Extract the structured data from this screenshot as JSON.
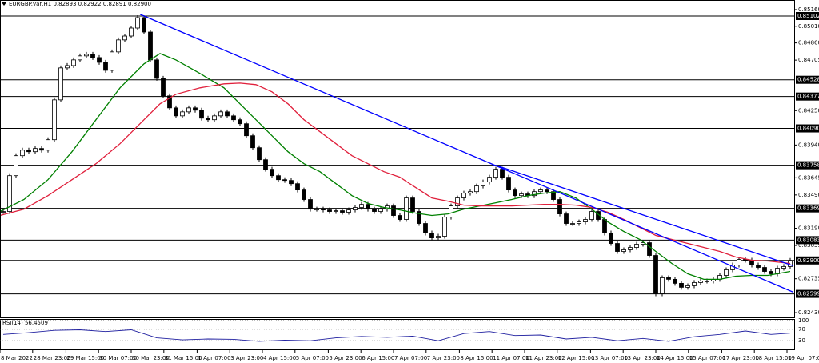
{
  "chart_data": {
    "type": "candlestick",
    "title": "EURGBP.var,H1  0.82893 0.82922 0.82891 0.82900",
    "xlim": [
      -0.5,
      123.5
    ],
    "ylim": [
      0.8238,
      0.85246
    ],
    "values": [
      0.83341,
      0.83664,
      0.83844,
      0.83894,
      0.8388,
      0.83909,
      0.83894,
      0.83988,
      0.84347,
      0.84635,
      0.84656,
      0.84707,
      0.84743,
      0.84757,
      0.84728,
      0.84685,
      0.84613,
      0.84779,
      0.84887,
      0.84922,
      0.84994,
      0.85088,
      0.84958,
      0.84707,
      0.84541,
      0.84383,
      0.84275,
      0.84203,
      0.84239,
      0.84275,
      0.84254,
      0.84182,
      0.84168,
      0.84203,
      0.84239,
      0.84203,
      0.84168,
      0.84132,
      0.84024,
      0.83916,
      0.83808,
      0.83722,
      0.83664,
      0.83628,
      0.83621,
      0.83592,
      0.83535,
      0.83449,
      0.83362,
      0.83362,
      0.83355,
      0.83341,
      0.83348,
      0.83334,
      0.83355,
      0.83377,
      0.83405,
      0.83362,
      0.83341,
      0.83362,
      0.83391,
      0.83305,
      0.83269,
      0.83463,
      0.83341,
      0.83233,
      0.83147,
      0.83103,
      0.83118,
      0.8329,
      0.83391,
      0.83463,
      0.83506,
      0.8352,
      0.83571,
      0.83607,
      0.8365,
      0.83722,
      0.8365,
      0.83535,
      0.83484,
      0.83499,
      0.83484,
      0.8352,
      0.83535,
      0.8352,
      0.83449,
      0.83319,
      0.83233,
      0.83233,
      0.83247,
      0.83269,
      0.83341,
      0.83269,
      0.83147,
      0.83053,
      0.82981,
      0.82996,
      0.83017,
      0.83046,
      0.8306,
      0.82945,
      0.826,
      0.82744,
      0.8273,
      0.82694,
      0.82658,
      0.82672,
      0.82701,
      0.82715,
      0.82715,
      0.8273,
      0.82765,
      0.82816,
      0.82859,
      0.82909,
      0.82902,
      0.82859,
      0.82837,
      0.82801,
      0.8278,
      0.8283,
      0.82845,
      0.829
    ],
    "bull_color": "#ffffff",
    "bear_color": "#000000",
    "yticks": [
      {
        "value": 0.8516,
        "label": "0.85160"
      },
      {
        "value": 0.8501,
        "label": "0.85010"
      },
      {
        "value": 0.8486,
        "label": "0.84860"
      },
      {
        "value": 0.84705,
        "label": "0.84705"
      },
      {
        "value": 0.8425,
        "label": "0.84250"
      },
      {
        "value": 0.8394,
        "label": "0.83940"
      },
      {
        "value": 0.83645,
        "label": "0.83645"
      },
      {
        "value": 0.8349,
        "label": "0.83490"
      },
      {
        "value": 0.8319,
        "label": "0.83190"
      },
      {
        "value": 0.83035,
        "label": "0.83035"
      },
      {
        "value": 0.82735,
        "label": "0.82735"
      },
      {
        "value": 0.8243,
        "label": "0.82430"
      }
    ],
    "levels": [
      {
        "value": 0.85102,
        "label": "0.85102"
      },
      {
        "value": 0.84528,
        "label": "0.84528"
      },
      {
        "value": 0.84377,
        "label": "0.84377"
      },
      {
        "value": 0.8409,
        "label": "0.84090"
      },
      {
        "value": 0.83758,
        "label": "0.83758"
      },
      {
        "value": 0.83369,
        "label": "0.83369"
      },
      {
        "value": 0.83083,
        "label": "0.83083"
      },
      {
        "value": 0.829,
        "label": "0.82900"
      },
      {
        "value": 0.82599,
        "label": "0.82599"
      }
    ],
    "level_color": "#000000",
    "xticks": [
      {
        "value": -0.5,
        "label": "8 Mar 2022"
      },
      {
        "value": 4.6,
        "label": "28 Mar 23:00"
      },
      {
        "value": 9.8,
        "label": "29 Mar 15:00"
      },
      {
        "value": 14.9,
        "label": "30 Mar 07:00"
      },
      {
        "value": 20,
        "label": "30 Mar 23:00"
      },
      {
        "value": 25.1,
        "label": "31 Mar 15:00"
      },
      {
        "value": 30.3,
        "label": "1 Apr 07:00"
      },
      {
        "value": 35.4,
        "label": "3 Apr 23:00"
      },
      {
        "value": 40.5,
        "label": "4 Apr 15:00"
      },
      {
        "value": 45.6,
        "label": "5 Apr 07:00"
      },
      {
        "value": 50.8,
        "label": "5 Apr 23:00"
      },
      {
        "value": 55.9,
        "label": "6 Apr 15:00"
      },
      {
        "value": 61,
        "label": "7 Apr 07:00"
      },
      {
        "value": 66.1,
        "label": "7 Apr 23:00"
      },
      {
        "value": 71.3,
        "label": "8 Apr 15:00"
      },
      {
        "value": 76.4,
        "label": "11 Apr 07:00"
      },
      {
        "value": 81.5,
        "label": "11 Apr 23:00"
      },
      {
        "value": 86.6,
        "label": "12 Apr 15:00"
      },
      {
        "value": 91.8,
        "label": "13 Apr 07:00"
      },
      {
        "value": 96.9,
        "label": "13 Apr 23:00"
      },
      {
        "value": 102,
        "label": "14 Apr 15:00"
      },
      {
        "value": 107.1,
        "label": "15 Apr 07:00"
      },
      {
        "value": 112.3,
        "label": "17 Apr 23:00"
      },
      {
        "value": 117.4,
        "label": "18 Apr 15:00"
      },
      {
        "value": 122.5,
        "label": "19 Apr 07:00"
      }
    ],
    "overlays": [
      {
        "color": "#008000",
        "x": [
          -0.5,
          3.25,
          7,
          10.75,
          14.5,
          18.25,
          22,
          24.5,
          27,
          30.75,
          34.5,
          37,
          39.5,
          42,
          44.5,
          47,
          49.5,
          52,
          54.5,
          57,
          59.5,
          62,
          64.5,
          67,
          69.5,
          72,
          74.5,
          77,
          79.5,
          82,
          84.5,
          87,
          89.5,
          92,
          94.5,
          97,
          99.5,
          102,
          104.5,
          107,
          109.5,
          112,
          114.5,
          117,
          119.5,
          123
        ],
        "values": [
          0.83341,
          0.83449,
          0.83628,
          0.8388,
          0.84168,
          0.84455,
          0.84671,
          0.84764,
          0.84707,
          0.84585,
          0.84455,
          0.84311,
          0.84168,
          0.84024,
          0.8388,
          0.83772,
          0.837,
          0.83592,
          0.83484,
          0.83413,
          0.83377,
          0.83355,
          0.83326,
          0.83305,
          0.83319,
          0.83362,
          0.83391,
          0.8342,
          0.83449,
          0.83484,
          0.83506,
          0.8352,
          0.83463,
          0.83362,
          0.83247,
          0.83161,
          0.83089,
          0.82981,
          0.82873,
          0.8278,
          0.8273,
          0.8273,
          0.82758,
          0.82765,
          0.82765,
          0.82801
        ]
      },
      {
        "color": "#e0203c",
        "x": [
          -0.5,
          3.25,
          7,
          10.75,
          14.5,
          18.25,
          22,
          24.5,
          27,
          30.75,
          34.5,
          37,
          39.5,
          42,
          44.5,
          47,
          49.5,
          52,
          54.5,
          57,
          59.5,
          62,
          64.5,
          67,
          69.5,
          72,
          74.5,
          77,
          79.5,
          82,
          84.5,
          87,
          89.5,
          92,
          94.5,
          97,
          99.5,
          102,
          104.5,
          107,
          109.5,
          112,
          114.5,
          117,
          119.5,
          123
        ],
        "values": [
          0.83305,
          0.83362,
          0.83484,
          0.83628,
          0.83772,
          0.83952,
          0.84168,
          0.84311,
          0.84398,
          0.84455,
          0.84491,
          0.84498,
          0.84484,
          0.84419,
          0.84311,
          0.84168,
          0.8406,
          0.83952,
          0.83844,
          0.83772,
          0.837,
          0.8365,
          0.83556,
          0.83463,
          0.83434,
          0.83398,
          0.83391,
          0.83391,
          0.83391,
          0.83398,
          0.83405,
          0.83405,
          0.83398,
          0.83377,
          0.83334,
          0.83269,
          0.83197,
          0.83125,
          0.83089,
          0.83053,
          0.83017,
          0.82981,
          0.82931,
          0.82902,
          0.82895,
          0.82873
        ]
      },
      {
        "color": "#0000ff",
        "x": [
          21.4,
          123.5
        ],
        "values": [
          0.85117,
          0.82614
        ]
      },
      {
        "color": "#0000ff",
        "x": [
          77,
          123.5
        ],
        "values": [
          0.83758,
          0.82852
        ]
      }
    ],
    "rsi": {
      "label": "RSI(14) 56.4509",
      "color": "#2020a0",
      "ylim": [
        0,
        100
      ],
      "yticks": [
        100,
        70,
        30
      ],
      "x": [
        0,
        4,
        8,
        12,
        16,
        20,
        24,
        28,
        32,
        36,
        40,
        44,
        48,
        52,
        56,
        60,
        64,
        68,
        72,
        76,
        80,
        84,
        88,
        92,
        96,
        100,
        104,
        108,
        112,
        116,
        120,
        123
      ],
      "values": [
        52,
        58,
        66,
        68,
        62,
        68,
        40,
        33,
        36,
        35,
        28,
        32,
        30,
        40,
        45,
        42,
        46,
        30,
        55,
        62,
        48,
        50,
        36,
        42,
        30,
        38,
        28,
        44,
        52,
        64,
        52,
        56.4509
      ]
    }
  }
}
